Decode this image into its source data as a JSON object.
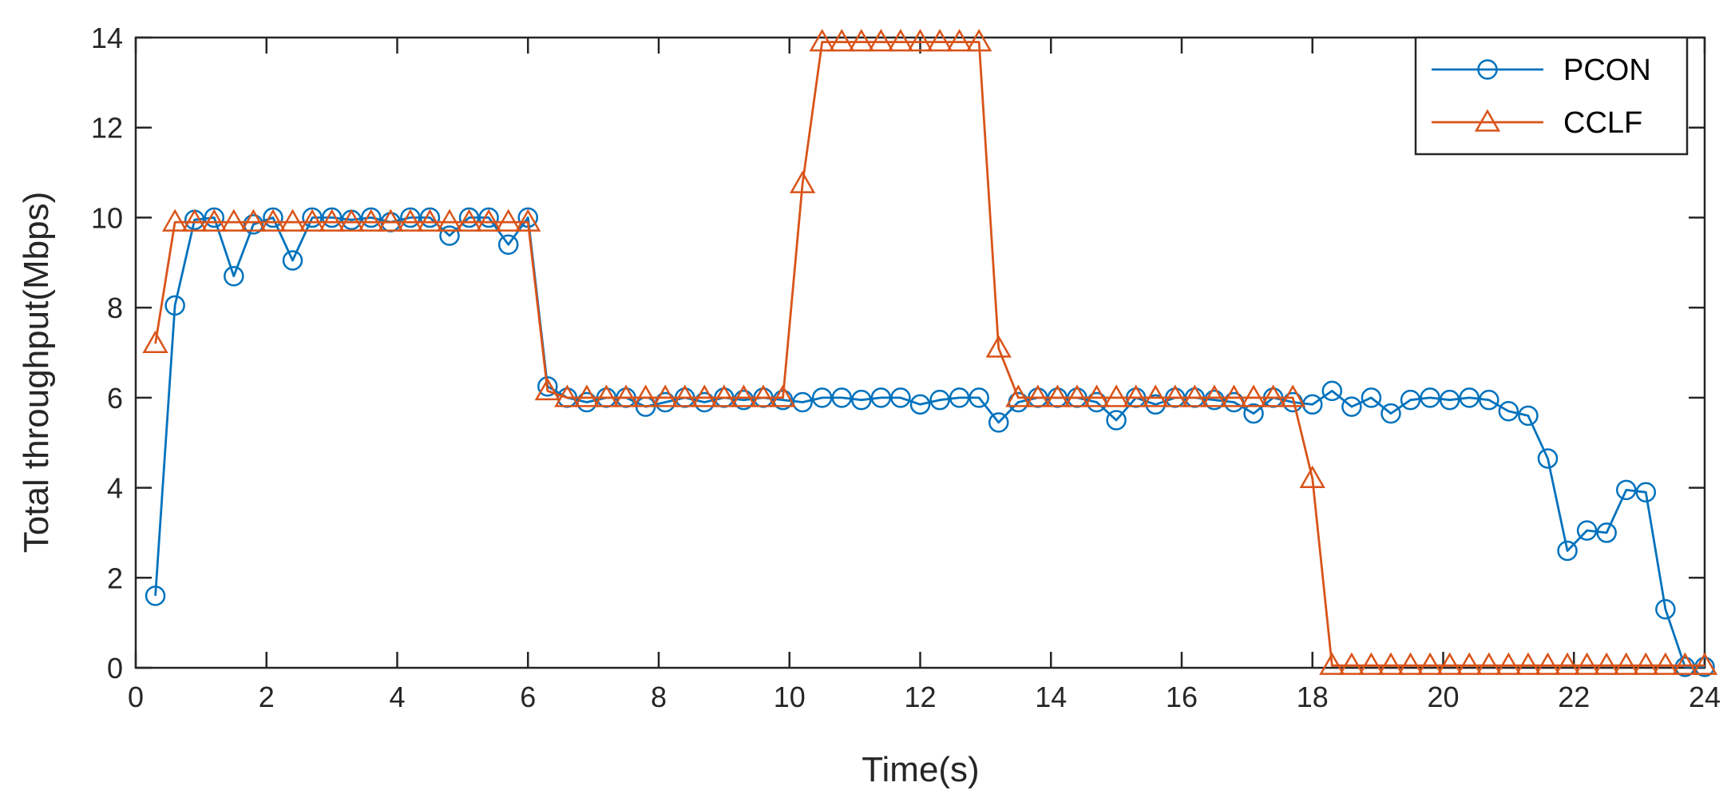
{
  "chart_data": {
    "type": "line",
    "title": "",
    "xlabel": "Time(s)",
    "ylabel": "Total throughput(Mbps)",
    "xlim": [
      0,
      24
    ],
    "ylim": [
      0,
      14
    ],
    "xticks": [
      0,
      2,
      4,
      6,
      8,
      10,
      12,
      14,
      16,
      18,
      20,
      22,
      24
    ],
    "yticks": [
      0,
      2,
      4,
      6,
      8,
      10,
      12,
      14
    ],
    "grid": false,
    "legend_position": "top-right",
    "series": [
      {
        "name": "PCON",
        "color": "#0072BD",
        "marker": "circle",
        "x": [
          0.3,
          0.6,
          0.9,
          1.2,
          1.5,
          1.8,
          2.1,
          2.4,
          2.7,
          3.0,
          3.3,
          3.6,
          3.9,
          4.2,
          4.5,
          4.8,
          5.1,
          5.4,
          5.7,
          6.0,
          6.3,
          6.6,
          6.9,
          7.2,
          7.5,
          7.8,
          8.1,
          8.4,
          8.7,
          9.0,
          9.3,
          9.6,
          9.9,
          10.2,
          10.5,
          10.8,
          11.1,
          11.4,
          11.7,
          12.0,
          12.3,
          12.6,
          12.9,
          13.2,
          13.5,
          13.8,
          14.1,
          14.4,
          14.7,
          15.0,
          15.3,
          15.6,
          15.9,
          16.2,
          16.5,
          16.8,
          17.1,
          17.4,
          17.7,
          18.0,
          18.3,
          18.6,
          18.9,
          19.2,
          19.5,
          19.8,
          20.1,
          20.4,
          20.7,
          21.0,
          21.3,
          21.6,
          21.9,
          22.2,
          22.5,
          22.8,
          23.1,
          23.4,
          23.7,
          24.0
        ],
        "values": [
          1.6,
          8.05,
          9.95,
          10.0,
          8.7,
          9.85,
          10.0,
          9.05,
          10.0,
          10.0,
          9.95,
          10.0,
          9.9,
          10.0,
          10.0,
          9.6,
          10.0,
          10.0,
          9.4,
          10.0,
          6.25,
          6.0,
          5.9,
          6.0,
          6.0,
          5.8,
          5.9,
          6.0,
          5.9,
          6.0,
          5.95,
          6.0,
          5.95,
          5.9,
          6.0,
          6.0,
          5.95,
          6.0,
          6.0,
          5.85,
          5.95,
          6.0,
          6.0,
          5.45,
          5.9,
          6.0,
          6.0,
          6.0,
          5.9,
          5.5,
          6.0,
          5.85,
          6.0,
          6.0,
          5.95,
          5.9,
          5.65,
          6.0,
          5.9,
          5.85,
          6.15,
          5.8,
          6.0,
          5.65,
          5.95,
          6.0,
          5.95,
          6.0,
          5.95,
          5.7,
          5.6,
          4.65,
          2.6,
          3.05,
          3.0,
          3.95,
          3.9,
          1.3,
          0.02,
          0.02
        ]
      },
      {
        "name": "CCLF",
        "color": "#D95319",
        "marker": "triangle",
        "x": [
          0.3,
          0.6,
          0.9,
          1.2,
          1.5,
          1.8,
          2.1,
          2.4,
          2.7,
          3.0,
          3.3,
          3.6,
          3.9,
          4.2,
          4.5,
          4.8,
          5.1,
          5.4,
          5.7,
          6.0,
          6.3,
          6.6,
          6.9,
          7.2,
          7.5,
          7.8,
          8.1,
          8.4,
          8.7,
          9.0,
          9.3,
          9.6,
          9.9,
          10.2,
          10.5,
          10.8,
          11.1,
          11.4,
          11.7,
          12.0,
          12.3,
          12.6,
          12.9,
          13.2,
          13.5,
          13.8,
          14.1,
          14.4,
          14.7,
          15.0,
          15.3,
          15.6,
          15.9,
          16.2,
          16.5,
          16.8,
          17.1,
          17.4,
          17.7,
          18.0,
          18.3,
          18.6,
          18.9,
          19.2,
          19.5,
          19.8,
          20.1,
          20.4,
          20.7,
          21.0,
          21.3,
          21.6,
          21.9,
          22.2,
          22.5,
          22.8,
          23.1,
          23.4,
          23.7,
          24.0
        ],
        "values": [
          7.2,
          9.9,
          9.9,
          9.9,
          9.9,
          9.9,
          9.9,
          9.9,
          9.9,
          9.9,
          9.9,
          9.9,
          9.9,
          9.9,
          9.9,
          9.9,
          9.9,
          9.9,
          9.9,
          9.9,
          6.15,
          6.0,
          6.0,
          6.0,
          6.0,
          6.0,
          6.0,
          6.0,
          6.0,
          6.0,
          6.0,
          6.0,
          6.0,
          10.75,
          13.9,
          13.9,
          13.9,
          13.9,
          13.9,
          13.9,
          13.9,
          13.9,
          13.9,
          7.1,
          6.0,
          6.0,
          6.0,
          6.0,
          6.0,
          6.0,
          6.0,
          6.0,
          6.0,
          6.0,
          6.0,
          6.0,
          6.0,
          6.0,
          6.0,
          4.2,
          0.05,
          0.05,
          0.05,
          0.05,
          0.05,
          0.05,
          0.05,
          0.05,
          0.05,
          0.05,
          0.05,
          0.05,
          0.05,
          0.05,
          0.05,
          0.05,
          0.05,
          0.05,
          0.05,
          0.05
        ]
      }
    ]
  }
}
